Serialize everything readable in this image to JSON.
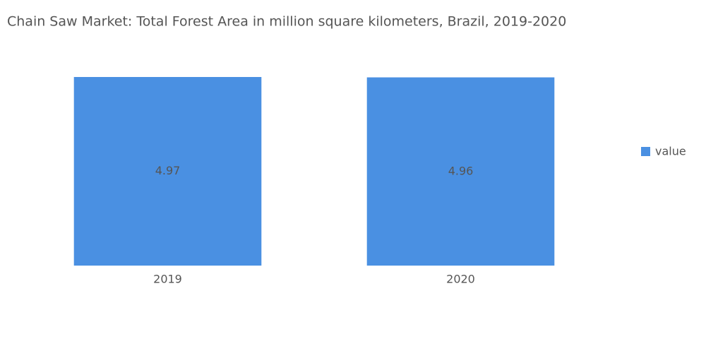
{
  "chart_data": {
    "type": "bar",
    "title": "Chain Saw Market: Total Forest Area in million square kilometers, Brazil, 2019-2020",
    "categories": [
      "2019",
      "2020"
    ],
    "series": [
      {
        "name": "value",
        "color": "#4a90e2",
        "values": [
          4.97,
          4.96
        ]
      }
    ]
  }
}
